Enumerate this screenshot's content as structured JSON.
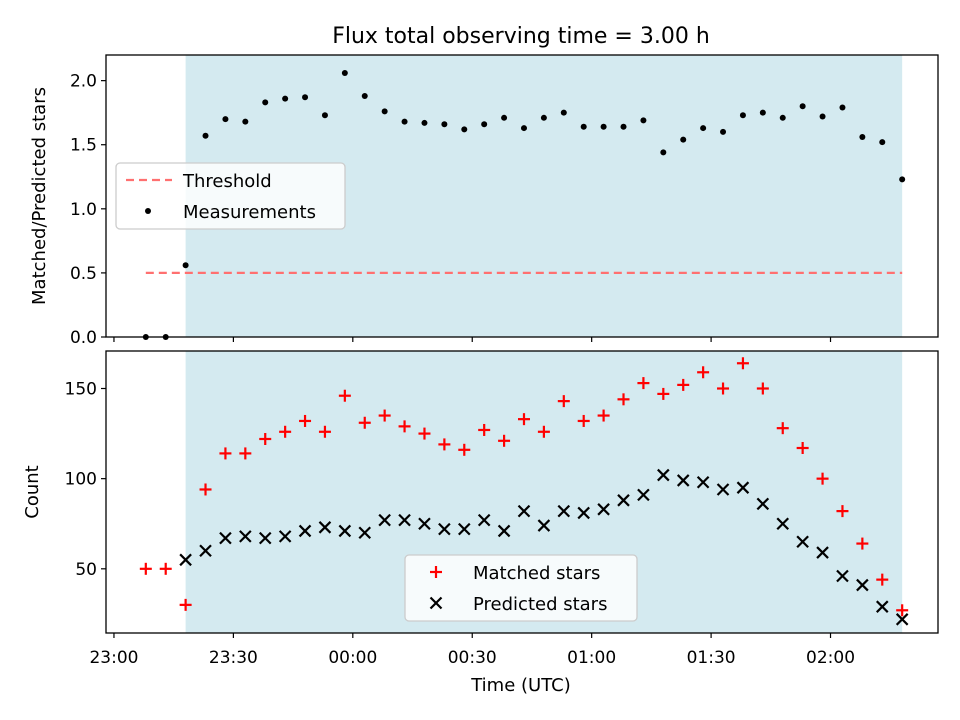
{
  "title": "Flux total observing time = 3.00 h",
  "xlabel": "Time (UTC)",
  "colors": {
    "observing_band": "#d4eaf0",
    "threshold": "#ff7070",
    "measurements": "#000000",
    "matched": "#ff0000",
    "predicted": "#000000"
  },
  "chart_data": [
    {
      "type": "scatter",
      "panel": "top",
      "title": "Flux total observing time = 3.00 h",
      "ylabel": "Matched/Predicted stars",
      "xlim": [
        "22:58",
        "02:27"
      ],
      "ylim": [
        0,
        2.2
      ],
      "yticks": [
        0.0,
        0.5,
        1.0,
        1.5,
        2.0
      ],
      "ytick_labels": [
        "0.0",
        "0.5",
        "1.0",
        "1.5",
        "2.0"
      ],
      "observing_band": [
        "23:18",
        "02:18"
      ],
      "legend": {
        "placement": "center-left",
        "entries": [
          "Threshold",
          "Measurements"
        ]
      },
      "threshold": {
        "name": "Threshold",
        "y": 0.5,
        "x": [
          "23:08",
          "02:18"
        ],
        "style": "dashed"
      },
      "series": [
        {
          "name": "Measurements",
          "marker": "dot",
          "x": [
            "23:08",
            "23:13",
            "23:18",
            "23:23",
            "23:28",
            "23:33",
            "23:38",
            "23:43",
            "23:48",
            "23:53",
            "23:58",
            "00:03",
            "00:08",
            "00:13",
            "00:18",
            "00:23",
            "00:28",
            "00:33",
            "00:38",
            "00:43",
            "00:48",
            "00:53",
            "00:58",
            "01:03",
            "01:08",
            "01:13",
            "01:18",
            "01:23",
            "01:28",
            "01:33",
            "01:38",
            "01:43",
            "01:48",
            "01:53",
            "01:58",
            "02:03",
            "02:08",
            "02:13",
            "02:18"
          ],
          "y": [
            0.0,
            0.0,
            0.56,
            1.57,
            1.7,
            1.68,
            1.83,
            1.86,
            1.87,
            1.73,
            2.06,
            1.88,
            1.76,
            1.68,
            1.67,
            1.66,
            1.62,
            1.66,
            1.71,
            1.63,
            1.71,
            1.75,
            1.64,
            1.64,
            1.64,
            1.69,
            1.44,
            1.54,
            1.63,
            1.6,
            1.73,
            1.75,
            1.71,
            1.8,
            1.72,
            1.79,
            1.56,
            1.52,
            1.23
          ]
        }
      ]
    },
    {
      "type": "scatter",
      "panel": "bottom",
      "ylabel": "Count",
      "xlabel": "Time (UTC)",
      "xlim": [
        "22:58",
        "02:27"
      ],
      "ylim": [
        14.4,
        170.8
      ],
      "yticks": [
        50,
        100,
        150
      ],
      "ytick_labels": [
        "50",
        "100",
        "150"
      ],
      "xtick_labels": [
        "23:00",
        "23:30",
        "00:00",
        "00:30",
        "01:00",
        "01:30",
        "02:00"
      ],
      "xticks": [
        "23:00",
        "23:30",
        "00:00",
        "00:30",
        "01:00",
        "01:30",
        "02:00"
      ],
      "observing_band": [
        "23:18",
        "02:18"
      ],
      "legend": {
        "placement": "lower-center",
        "entries": [
          "Matched stars",
          "Predicted stars"
        ]
      },
      "series": [
        {
          "name": "Matched stars",
          "marker": "plus",
          "x": [
            "23:08",
            "23:13",
            "23:18",
            "23:23",
            "23:28",
            "23:33",
            "23:38",
            "23:43",
            "23:48",
            "23:53",
            "23:58",
            "00:03",
            "00:08",
            "00:13",
            "00:18",
            "00:23",
            "00:28",
            "00:33",
            "00:38",
            "00:43",
            "00:48",
            "00:53",
            "00:58",
            "01:03",
            "01:08",
            "01:13",
            "01:18",
            "01:23",
            "01:28",
            "01:33",
            "01:38",
            "01:43",
            "01:48",
            "01:53",
            "01:58",
            "02:03",
            "02:08",
            "02:13",
            "02:18"
          ],
          "y": [
            50,
            50,
            30,
            94,
            114,
            114,
            122,
            126,
            132,
            126,
            146,
            131,
            135,
            129,
            125,
            119,
            116,
            127,
            121,
            133,
            126,
            143,
            132,
            135,
            144,
            153,
            147,
            152,
            159,
            150,
            164,
            150,
            128,
            117,
            100,
            82,
            64,
            44,
            27
          ]
        },
        {
          "name": "Predicted stars",
          "marker": "x",
          "x": [
            "23:18",
            "23:23",
            "23:28",
            "23:33",
            "23:38",
            "23:43",
            "23:48",
            "23:53",
            "23:58",
            "00:03",
            "00:08",
            "00:13",
            "00:18",
            "00:23",
            "00:28",
            "00:33",
            "00:38",
            "00:43",
            "00:48",
            "00:53",
            "00:58",
            "01:03",
            "01:08",
            "01:13",
            "01:18",
            "01:23",
            "01:28",
            "01:33",
            "01:38",
            "01:43",
            "01:48",
            "01:53",
            "01:58",
            "02:03",
            "02:08",
            "02:13",
            "02:18"
          ],
          "y": [
            55,
            60,
            67,
            68,
            67,
            68,
            71,
            73,
            71,
            70,
            77,
            77,
            75,
            72,
            72,
            77,
            71,
            82,
            74,
            82,
            81,
            83,
            88,
            91,
            102,
            99,
            98,
            94,
            95,
            86,
            75,
            65,
            59,
            46,
            41,
            29,
            22
          ]
        }
      ]
    }
  ]
}
